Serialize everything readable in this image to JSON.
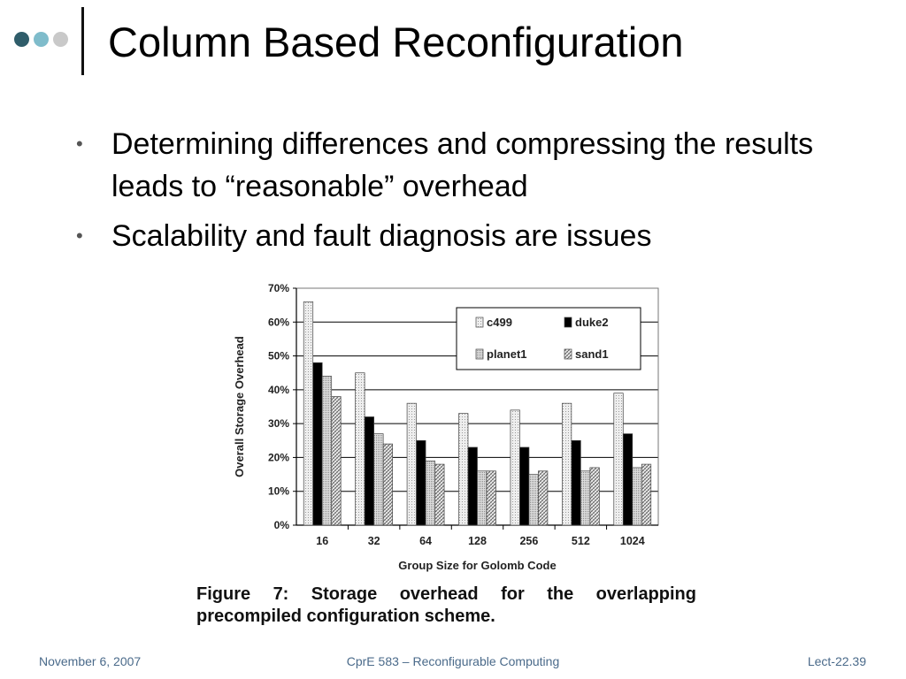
{
  "theme": {
    "dot_colors": [
      "#2f5d6a",
      "#7fbccb",
      "#c9c9c9"
    ]
  },
  "slide": {
    "title": "Column Based Reconfiguration",
    "bullets": [
      "Determining differences and compressing the results leads to “reasonable” overhead",
      "Scalability and fault diagnosis are issues"
    ],
    "bullet_mark": "•",
    "caption_line1": "Figure 7: Storage overhead for the overlapping",
    "caption_line2": "precompiled configuration scheme."
  },
  "footer": {
    "date": "November 6, 2007",
    "course": "CprE 583 – Reconfigurable Computing",
    "lecture": "Lect-22.39"
  },
  "chart_data": {
    "type": "bar",
    "xlabel": "Group Size for Golomb Code",
    "ylabel": "Overall Storage Overhead",
    "categories": [
      "16",
      "32",
      "64",
      "128",
      "256",
      "512",
      "1024"
    ],
    "ylim": [
      0,
      70
    ],
    "yticks": [
      "0%",
      "10%",
      "20%",
      "30%",
      "40%",
      "50%",
      "60%",
      "70%"
    ],
    "grid": true,
    "legend_position": "top-right",
    "series": [
      {
        "name": "c499",
        "pattern": "light-dotted",
        "values": [
          66,
          45,
          36,
          33,
          34,
          36,
          39
        ]
      },
      {
        "name": "duke2",
        "pattern": "solid-black",
        "values": [
          48,
          32,
          25,
          23,
          23,
          25,
          27
        ]
      },
      {
        "name": "planet1",
        "pattern": "light-dotted",
        "values": [
          44,
          27,
          19,
          16,
          15,
          16,
          17
        ]
      },
      {
        "name": "sand1",
        "pattern": "hatched",
        "values": [
          38,
          24,
          18,
          16,
          16,
          17,
          18
        ]
      }
    ]
  }
}
